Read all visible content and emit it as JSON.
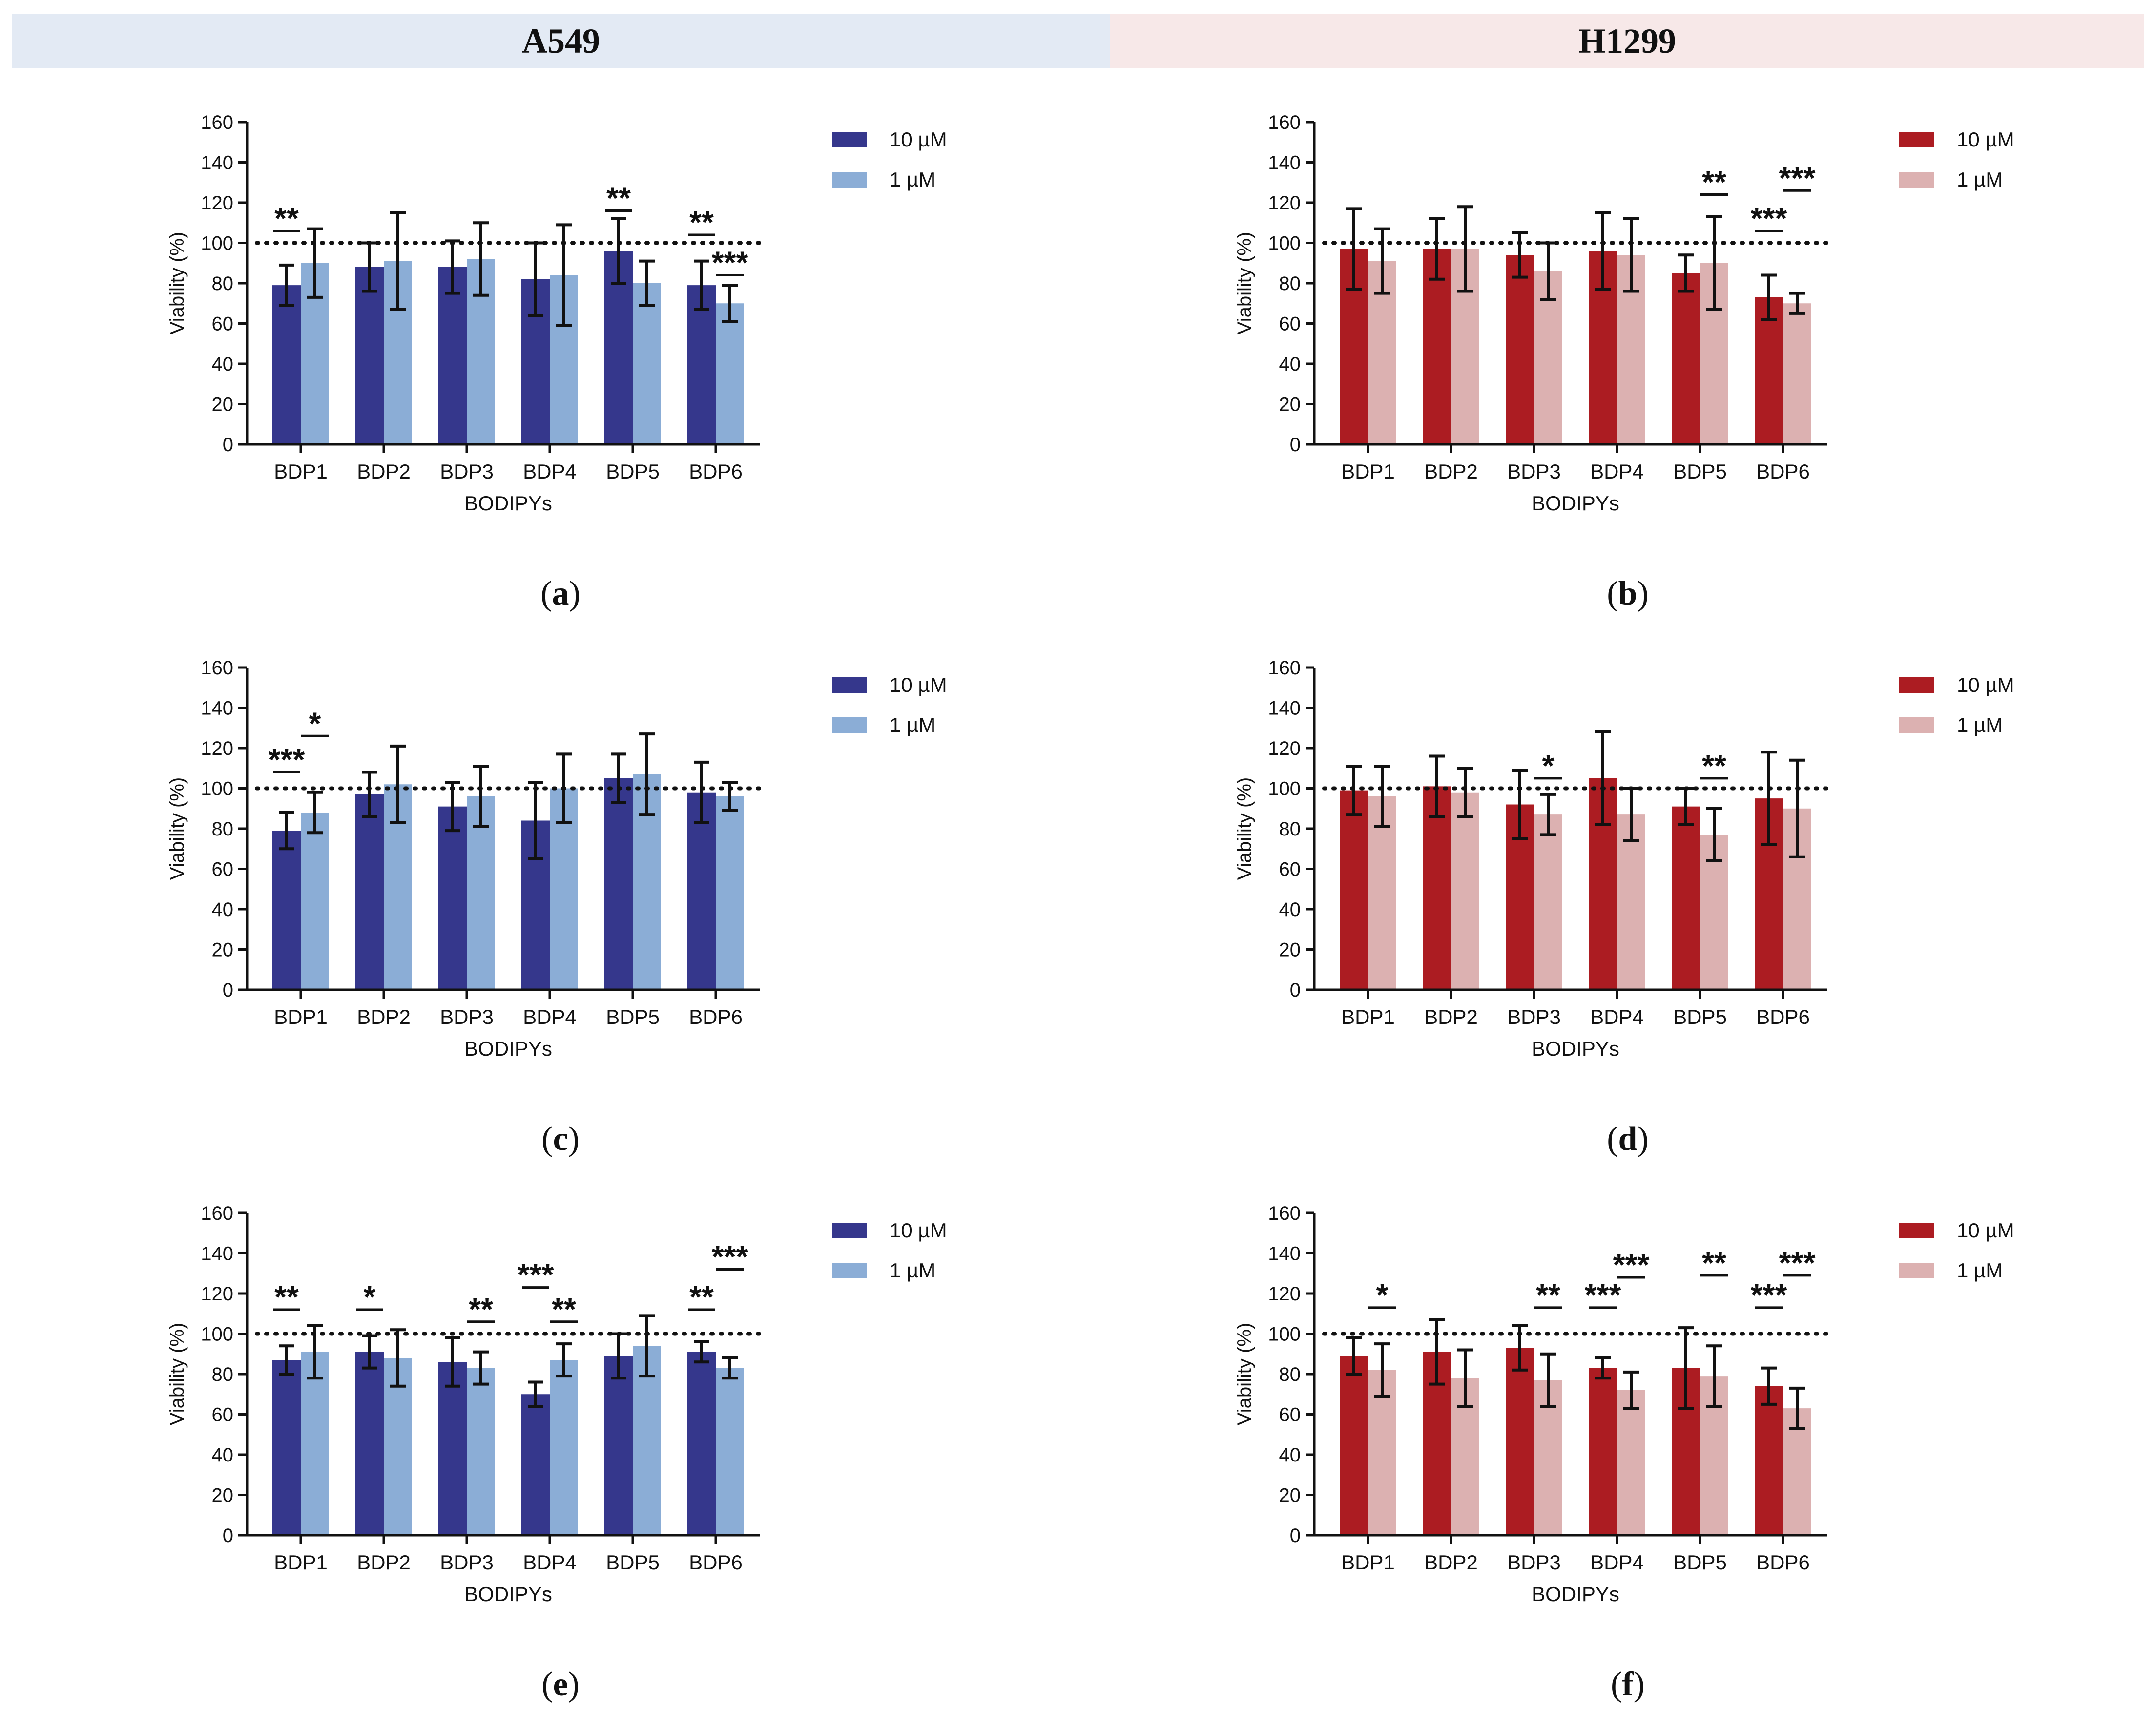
{
  "headers": {
    "left": "A549",
    "right": "H1299"
  },
  "colors": {
    "a549_10": "#35378c",
    "a549_1": "#8badd6",
    "h1299_10": "#ac1c22",
    "h1299_1": "#dcb1b1"
  },
  "chart_data": [
    {
      "id": "a",
      "caption_letter": "a",
      "cell_line": "A549",
      "type": "bar",
      "ylabel": "Viability (%)",
      "xlabel": "BODIPYs",
      "ylim": [
        0,
        160
      ],
      "yticks": [
        "0",
        "20",
        "40",
        "60",
        "80",
        "100",
        "120",
        "140",
        "160"
      ],
      "reference_line": 100,
      "categories": [
        "BDP1",
        "BDP2",
        "BDP3",
        "BDP4",
        "BDP5",
        "BDP6"
      ],
      "series": [
        {
          "name": "10 µM",
          "values": [
            79,
            88,
            88,
            82,
            96,
            79
          ],
          "errors": [
            10,
            12,
            13,
            18,
            16,
            12
          ]
        },
        {
          "name": "1 µM",
          "values": [
            90,
            91,
            92,
            84,
            80,
            70
          ],
          "errors": [
            17,
            24,
            18,
            25,
            11,
            9
          ]
        }
      ],
      "annotations": [
        {
          "text": "**",
          "category": 0,
          "series": 0,
          "y": 106
        },
        {
          "text": "**",
          "category": 4,
          "series": 0,
          "y": 116
        },
        {
          "text": "**",
          "category": 5,
          "series": 0,
          "y": 104
        },
        {
          "text": "***",
          "category": 5,
          "series": 1,
          "y": 84
        }
      ]
    },
    {
      "id": "b",
      "caption_letter": "b",
      "cell_line": "H1299",
      "type": "bar",
      "ylabel": "Viability (%)",
      "xlabel": "BODIPYs",
      "ylim": [
        0,
        160
      ],
      "yticks": [
        "0",
        "20",
        "40",
        "60",
        "80",
        "100",
        "120",
        "140",
        "160"
      ],
      "reference_line": 100,
      "categories": [
        "BDP1",
        "BDP2",
        "BDP3",
        "BDP4",
        "BDP5",
        "BDP6"
      ],
      "series": [
        {
          "name": "10 µM",
          "values": [
            97,
            97,
            94,
            96,
            85,
            73
          ],
          "errors": [
            20,
            15,
            11,
            19,
            9,
            11
          ]
        },
        {
          "name": "1 µM",
          "values": [
            91,
            97,
            86,
            94,
            90,
            70
          ],
          "errors": [
            16,
            21,
            14,
            18,
            23,
            5
          ]
        }
      ],
      "annotations": [
        {
          "text": "**",
          "category": 4,
          "series": 1,
          "y": 124
        },
        {
          "text": "***",
          "category": 5,
          "series": 0,
          "y": 106
        },
        {
          "text": "***",
          "category": 5,
          "series": 1,
          "y": 126
        }
      ]
    },
    {
      "id": "c",
      "caption_letter": "c",
      "cell_line": "A549",
      "type": "bar",
      "ylabel": "Viability (%)",
      "xlabel": "BODIPYs",
      "ylim": [
        0,
        160
      ],
      "yticks": [
        "0",
        "20",
        "40",
        "60",
        "80",
        "100",
        "120",
        "140",
        "160"
      ],
      "reference_line": 100,
      "categories": [
        "BDP1",
        "BDP2",
        "BDP3",
        "BDP4",
        "BDP5",
        "BDP6"
      ],
      "series": [
        {
          "name": "10 µM",
          "values": [
            79,
            97,
            91,
            84,
            105,
            98
          ],
          "errors": [
            9,
            11,
            12,
            19,
            12,
            15
          ]
        },
        {
          "name": "1 µM",
          "values": [
            88,
            102,
            96,
            100,
            107,
            96
          ],
          "errors": [
            10,
            19,
            15,
            17,
            20,
            7
          ]
        }
      ],
      "annotations": [
        {
          "text": "***",
          "category": 0,
          "series": 0,
          "y": 108
        },
        {
          "text": "*",
          "category": 0,
          "series": 1,
          "y": 126
        }
      ]
    },
    {
      "id": "d",
      "caption_letter": "d",
      "cell_line": "H1299",
      "type": "bar",
      "ylabel": "Viability (%)",
      "xlabel": "BODIPYs",
      "ylim": [
        0,
        160
      ],
      "yticks": [
        "0",
        "20",
        "40",
        "60",
        "80",
        "100",
        "120",
        "140",
        "160"
      ],
      "reference_line": 100,
      "categories": [
        "BDP1",
        "BDP2",
        "BDP3",
        "BDP4",
        "BDP5",
        "BDP6"
      ],
      "series": [
        {
          "name": "10 µM",
          "values": [
            99,
            101,
            92,
            105,
            91,
            95
          ],
          "errors": [
            12,
            15,
            17,
            23,
            9,
            23
          ]
        },
        {
          "name": "1 µM",
          "values": [
            96,
            98,
            87,
            87,
            77,
            90
          ],
          "errors": [
            15,
            12,
            10,
            13,
            13,
            24
          ]
        }
      ],
      "annotations": [
        {
          "text": "*",
          "category": 2,
          "series": 1,
          "y": 105
        },
        {
          "text": "**",
          "category": 4,
          "series": 1,
          "y": 105
        }
      ]
    },
    {
      "id": "e",
      "caption_letter": "e",
      "cell_line": "A549",
      "type": "bar",
      "ylabel": "Viability (%)",
      "xlabel": "BODIPYs",
      "ylim": [
        0,
        160
      ],
      "yticks": [
        "0",
        "20",
        "40",
        "60",
        "80",
        "100",
        "120",
        "140",
        "160"
      ],
      "reference_line": 100,
      "categories": [
        "BDP1",
        "BDP2",
        "BDP3",
        "BDP4",
        "BDP5",
        "BDP6"
      ],
      "series": [
        {
          "name": "10 µM",
          "values": [
            87,
            91,
            86,
            70,
            89,
            91
          ],
          "errors": [
            7,
            8,
            12,
            6,
            11,
            5
          ]
        },
        {
          "name": "1 µM",
          "values": [
            91,
            88,
            83,
            87,
            94,
            83
          ],
          "errors": [
            13,
            14,
            8,
            8,
            15,
            5
          ]
        }
      ],
      "annotations": [
        {
          "text": "**",
          "category": 0,
          "series": 0,
          "y": 112
        },
        {
          "text": "*",
          "category": 1,
          "series": 0,
          "y": 112
        },
        {
          "text": "**",
          "category": 2,
          "series": 1,
          "y": 106
        },
        {
          "text": "***",
          "category": 3,
          "series": 0,
          "y": 123
        },
        {
          "text": "**",
          "category": 3,
          "series": 1,
          "y": 106
        },
        {
          "text": "**",
          "category": 5,
          "series": 0,
          "y": 112
        },
        {
          "text": "***",
          "category": 5,
          "series": 1,
          "y": 132
        }
      ]
    },
    {
      "id": "f",
      "caption_letter": "f",
      "cell_line": "H1299",
      "type": "bar",
      "ylabel": "Viability (%)",
      "xlabel": "BODIPYs",
      "ylim": [
        0,
        160
      ],
      "yticks": [
        "0",
        "20",
        "40",
        "60",
        "80",
        "100",
        "120",
        "140",
        "160"
      ],
      "reference_line": 100,
      "categories": [
        "BDP1",
        "BDP2",
        "BDP3",
        "BDP4",
        "BDP5",
        "BDP6"
      ],
      "series": [
        {
          "name": "10 µM",
          "values": [
            89,
            91,
            93,
            83,
            83,
            74
          ],
          "errors": [
            9,
            16,
            11,
            5,
            20,
            9
          ]
        },
        {
          "name": "1 µM",
          "values": [
            82,
            78,
            77,
            72,
            79,
            63
          ],
          "errors": [
            13,
            14,
            13,
            9,
            15,
            10
          ]
        }
      ],
      "annotations": [
        {
          "text": "*",
          "category": 0,
          "series": 1,
          "y": 113
        },
        {
          "text": "**",
          "category": 2,
          "series": 1,
          "y": 113
        },
        {
          "text": "***",
          "category": 3,
          "series": 0,
          "y": 113
        },
        {
          "text": "***",
          "category": 3,
          "series": 1,
          "y": 128
        },
        {
          "text": "**",
          "category": 4,
          "series": 1,
          "y": 129
        },
        {
          "text": "***",
          "category": 5,
          "series": 0,
          "y": 113
        },
        {
          "text": "***",
          "category": 5,
          "series": 1,
          "y": 129
        }
      ]
    }
  ]
}
